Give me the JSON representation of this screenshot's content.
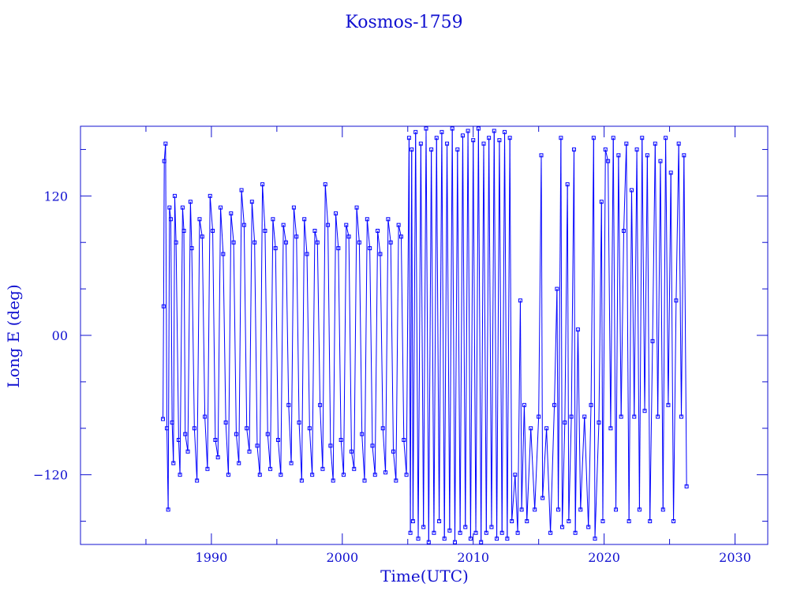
{
  "chart_data": {
    "type": "line",
    "title": "Kosmos-1759",
    "xlabel": "Time(UTC)",
    "ylabel": "Long E (deg)",
    "xlim": [
      1980,
      2032.5
    ],
    "ylim": [
      -180,
      180
    ],
    "xticks": [
      1990,
      2000,
      2010,
      2020,
      2030
    ],
    "yticks": [
      120,
      0,
      -120
    ],
    "ytick_labels": [
      "120",
      "00",
      "−120"
    ],
    "xtick_labels": [
      "1990",
      "2000",
      "2010",
      "2020",
      "2030"
    ],
    "grid": false,
    "marker": "square",
    "color": "#0000ff",
    "series": [
      {
        "points": [
          [
            1986.3,
            -72
          ],
          [
            1986.35,
            25
          ],
          [
            1986.4,
            150
          ],
          [
            1986.5,
            165
          ],
          [
            1986.6,
            -80
          ],
          [
            1986.7,
            -150
          ],
          [
            1986.8,
            110
          ],
          [
            1986.9,
            100
          ],
          [
            1987.0,
            -75
          ],
          [
            1987.1,
            -110
          ],
          [
            1987.2,
            120
          ],
          [
            1987.3,
            80
          ],
          [
            1987.5,
            -90
          ],
          [
            1987.6,
            -120
          ],
          [
            1987.8,
            110
          ],
          [
            1987.9,
            90
          ],
          [
            1988.0,
            -85
          ],
          [
            1988.2,
            -100
          ],
          [
            1988.4,
            115
          ],
          [
            1988.5,
            75
          ],
          [
            1988.7,
            -80
          ],
          [
            1988.9,
            -125
          ],
          [
            1989.1,
            100
          ],
          [
            1989.3,
            85
          ],
          [
            1989.5,
            -70
          ],
          [
            1989.7,
            -115
          ],
          [
            1989.9,
            120
          ],
          [
            1990.1,
            90
          ],
          [
            1990.3,
            -90
          ],
          [
            1990.5,
            -105
          ],
          [
            1990.7,
            110
          ],
          [
            1990.9,
            70
          ],
          [
            1991.1,
            -75
          ],
          [
            1991.3,
            -120
          ],
          [
            1991.5,
            105
          ],
          [
            1991.7,
            80
          ],
          [
            1991.9,
            -85
          ],
          [
            1992.1,
            -110
          ],
          [
            1992.3,
            125
          ],
          [
            1992.5,
            95
          ],
          [
            1992.7,
            -80
          ],
          [
            1992.9,
            -100
          ],
          [
            1993.1,
            115
          ],
          [
            1993.3,
            80
          ],
          [
            1993.5,
            -95
          ],
          [
            1993.7,
            -120
          ],
          [
            1993.9,
            130
          ],
          [
            1994.1,
            90
          ],
          [
            1994.3,
            -85
          ],
          [
            1994.5,
            -115
          ],
          [
            1994.7,
            100
          ],
          [
            1994.9,
            75
          ],
          [
            1995.1,
            -90
          ],
          [
            1995.3,
            -120
          ],
          [
            1995.5,
            95
          ],
          [
            1995.7,
            80
          ],
          [
            1995.9,
            -60
          ],
          [
            1996.1,
            -110
          ],
          [
            1996.3,
            110
          ],
          [
            1996.5,
            85
          ],
          [
            1996.7,
            -75
          ],
          [
            1996.9,
            -125
          ],
          [
            1997.1,
            100
          ],
          [
            1997.3,
            70
          ],
          [
            1997.5,
            -80
          ],
          [
            1997.7,
            -120
          ],
          [
            1997.9,
            90
          ],
          [
            1998.1,
            80
          ],
          [
            1998.3,
            -60
          ],
          [
            1998.5,
            -115
          ],
          [
            1998.7,
            130
          ],
          [
            1998.9,
            95
          ],
          [
            1999.1,
            -95
          ],
          [
            1999.3,
            -125
          ],
          [
            1999.5,
            105
          ],
          [
            1999.7,
            75
          ],
          [
            1999.9,
            -90
          ],
          [
            2000.1,
            -120
          ],
          [
            2000.3,
            95
          ],
          [
            2000.5,
            85
          ],
          [
            2000.7,
            -100
          ],
          [
            2000.9,
            -115
          ],
          [
            2001.1,
            110
          ],
          [
            2001.3,
            80
          ],
          [
            2001.5,
            -85
          ],
          [
            2001.7,
            -125
          ],
          [
            2001.9,
            100
          ],
          [
            2002.1,
            75
          ],
          [
            2002.3,
            -95
          ],
          [
            2002.5,
            -120
          ],
          [
            2002.7,
            90
          ],
          [
            2002.9,
            70
          ],
          [
            2003.1,
            -80
          ],
          [
            2003.3,
            -118
          ],
          [
            2003.5,
            100
          ],
          [
            2003.7,
            80
          ],
          [
            2003.9,
            -100
          ],
          [
            2004.1,
            -125
          ],
          [
            2004.3,
            95
          ],
          [
            2004.5,
            85
          ],
          [
            2004.7,
            -90
          ],
          [
            2004.9,
            -120
          ],
          [
            2005.1,
            170
          ],
          [
            2005.2,
            -170
          ],
          [
            2005.3,
            160
          ],
          [
            2005.4,
            -160
          ],
          [
            2005.6,
            175
          ],
          [
            2005.8,
            -175
          ],
          [
            2006.0,
            165
          ],
          [
            2006.2,
            -165
          ],
          [
            2006.4,
            178
          ],
          [
            2006.6,
            -178
          ],
          [
            2006.8,
            160
          ],
          [
            2007.0,
            -170
          ],
          [
            2007.2,
            170
          ],
          [
            2007.4,
            -160
          ],
          [
            2007.6,
            175
          ],
          [
            2007.8,
            -175
          ],
          [
            2008.0,
            165
          ],
          [
            2008.2,
            -168
          ],
          [
            2008.4,
            178
          ],
          [
            2008.6,
            -178
          ],
          [
            2008.8,
            160
          ],
          [
            2009.0,
            -170
          ],
          [
            2009.2,
            172
          ],
          [
            2009.4,
            -165
          ],
          [
            2009.6,
            176
          ],
          [
            2009.8,
            -175
          ],
          [
            2010.0,
            168
          ],
          [
            2010.2,
            -170
          ],
          [
            2010.4,
            178
          ],
          [
            2010.6,
            -178
          ],
          [
            2010.8,
            165
          ],
          [
            2011.0,
            -170
          ],
          [
            2011.2,
            170
          ],
          [
            2011.4,
            -165
          ],
          [
            2011.6,
            176
          ],
          [
            2011.8,
            -175
          ],
          [
            2012.0,
            168
          ],
          [
            2012.2,
            -170
          ],
          [
            2012.4,
            175
          ],
          [
            2012.6,
            -175
          ],
          [
            2012.8,
            170
          ],
          [
            2012.95,
            -160
          ],
          [
            2013.2,
            -120
          ],
          [
            2013.4,
            -170
          ],
          [
            2013.6,
            30
          ],
          [
            2013.7,
            -150
          ],
          [
            2013.9,
            -60
          ],
          [
            2014.1,
            -160
          ],
          [
            2014.4,
            -80
          ],
          [
            2014.7,
            -150
          ],
          [
            2015.0,
            -70
          ],
          [
            2015.2,
            155
          ],
          [
            2015.3,
            -140
          ],
          [
            2015.6,
            -80
          ],
          [
            2015.9,
            -170
          ],
          [
            2016.2,
            -60
          ],
          [
            2016.4,
            40
          ],
          [
            2016.5,
            -150
          ],
          [
            2016.7,
            170
          ],
          [
            2016.8,
            -165
          ],
          [
            2017.0,
            -75
          ],
          [
            2017.2,
            130
          ],
          [
            2017.3,
            -160
          ],
          [
            2017.5,
            -70
          ],
          [
            2017.7,
            160
          ],
          [
            2017.8,
            -170
          ],
          [
            2018.0,
            5
          ],
          [
            2018.2,
            -150
          ],
          [
            2018.5,
            -70
          ],
          [
            2018.8,
            -165
          ],
          [
            2019.0,
            -60
          ],
          [
            2019.2,
            170
          ],
          [
            2019.3,
            -175
          ],
          [
            2019.6,
            -75
          ],
          [
            2019.8,
            115
          ],
          [
            2019.9,
            -160
          ],
          [
            2020.1,
            160
          ],
          [
            2020.3,
            150
          ],
          [
            2020.5,
            -80
          ],
          [
            2020.7,
            170
          ],
          [
            2020.9,
            -150
          ],
          [
            2021.1,
            155
          ],
          [
            2021.3,
            -70
          ],
          [
            2021.5,
            90
          ],
          [
            2021.7,
            165
          ],
          [
            2021.9,
            -160
          ],
          [
            2022.1,
            125
          ],
          [
            2022.3,
            -70
          ],
          [
            2022.5,
            160
          ],
          [
            2022.7,
            -150
          ],
          [
            2022.9,
            170
          ],
          [
            2023.1,
            -65
          ],
          [
            2023.3,
            155
          ],
          [
            2023.5,
            -160
          ],
          [
            2023.7,
            -5
          ],
          [
            2023.9,
            165
          ],
          [
            2024.1,
            -70
          ],
          [
            2024.3,
            150
          ],
          [
            2024.5,
            -150
          ],
          [
            2024.7,
            170
          ],
          [
            2024.9,
            -60
          ],
          [
            2025.1,
            140
          ],
          [
            2025.3,
            -160
          ],
          [
            2025.5,
            30
          ],
          [
            2025.7,
            165
          ],
          [
            2025.9,
            -70
          ],
          [
            2026.1,
            155
          ],
          [
            2026.3,
            -130
          ]
        ]
      }
    ]
  }
}
